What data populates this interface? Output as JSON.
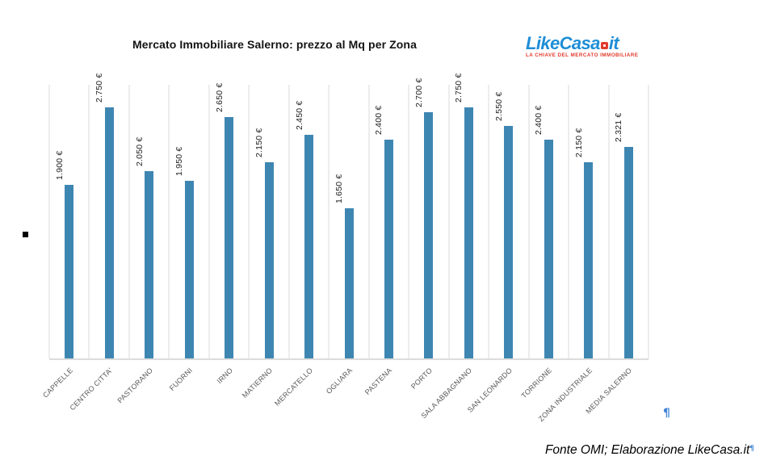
{
  "header": {
    "title": "Mercato Immobiliare Salerno: prezzo al Mq per Zona"
  },
  "logo": {
    "part_like": "Like",
    "part_casa": "Casa",
    "part_it": "it",
    "tagline": "LA CHIAVE DEL MERCATO IMMOBILIARE",
    "blue": "#1e8ed6",
    "red": "#e23b2e"
  },
  "chart_data": {
    "type": "bar",
    "title": "Mercato Immobiliare Salerno: prezzo al Mq per Zona",
    "categories": [
      "CAPPELLE",
      "CENTRO CITTA'",
      "PASTORANO",
      "FUORNI",
      "IRNO",
      "MATIERNO",
      "MERCATELLO",
      "OGLIARA",
      "PASTENA",
      "PORTO",
      "SALA ABBAGNANO",
      "SAN LEONARDO",
      "TORRIONE",
      "ZONA INDUSTRIALE",
      "MEDIA SALERNO"
    ],
    "values": [
      1900,
      2750,
      2050,
      1950,
      2650,
      2150,
      2450,
      1650,
      2400,
      2700,
      2750,
      2550,
      2400,
      2150,
      2321
    ],
    "value_labels": [
      "1.900 €",
      "2.750 €",
      "2.050 €",
      "1.950 €",
      "2.650 €",
      "2.150 €",
      "2.450 €",
      "1.650 €",
      "2.400 €",
      "2.700 €",
      "2.750 €",
      "2.550 €",
      "2.400 €",
      "2.150 €",
      "2.321 €"
    ],
    "xlabel": "",
    "ylabel": "",
    "ylim": [
      0,
      3000
    ],
    "legend": "none",
    "grid": "vertical category separators only",
    "value_label_rotation": -90,
    "category_label_rotation": -45,
    "bar_color": "#3e86b2"
  },
  "annotations": {
    "pilcrow": "¶"
  },
  "footer": {
    "source": "Fonte OMI; Elaborazione LikeCasa.it",
    "pilcrow": "¶"
  },
  "colors": {
    "bar": "#3e86b2",
    "gridline": "#ededed",
    "baseline": "#dcdcdc",
    "value_label": "#222222",
    "category_label": "#595959",
    "pilcrow_blue": "#4285d6"
  }
}
